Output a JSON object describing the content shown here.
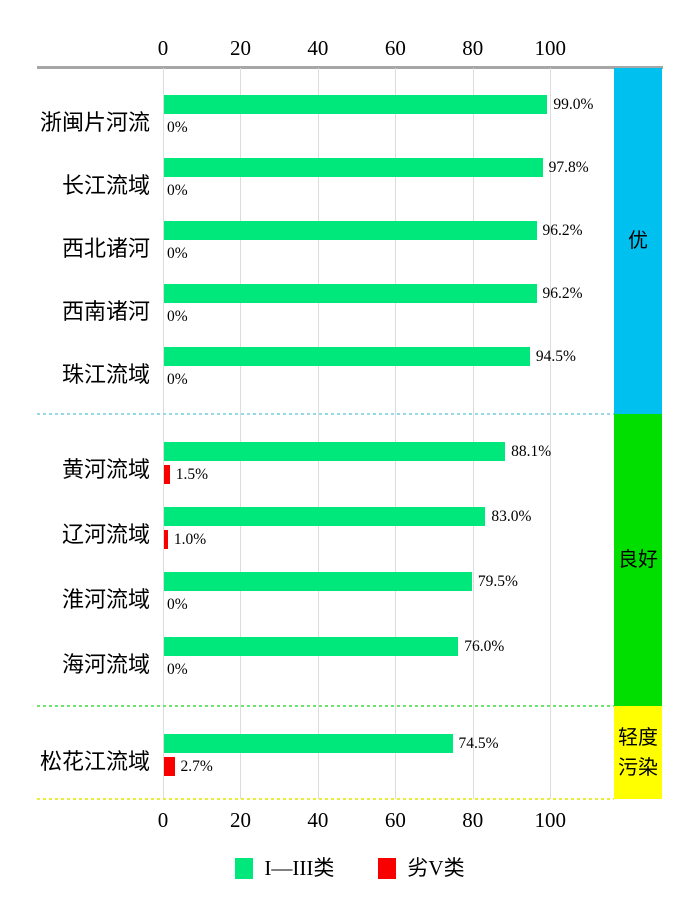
{
  "chart_data": {
    "type": "bar",
    "orientation": "horizontal",
    "title": "",
    "xlabel": "",
    "ylabel": "",
    "axis": {
      "ticks": [
        0,
        20,
        40,
        60,
        80,
        100
      ],
      "range": [
        0,
        100
      ],
      "shown_top_and_bottom": true
    },
    "grid": "vertical-on",
    "categories": [
      "浙闽片河流",
      "长江流域",
      "西北诸河",
      "西南诸河",
      "珠江流域",
      "黄河流域",
      "辽河流域",
      "淮河流域",
      "海河流域",
      "松花江流域"
    ],
    "series": [
      {
        "name": "I—III类",
        "color": "#00e87c",
        "values": [
          99.0,
          97.8,
          96.2,
          96.2,
          94.5,
          88.1,
          83.0,
          79.5,
          76.0,
          74.5
        ],
        "labels": [
          "99.0%",
          "97.8%",
          "96.2%",
          "96.2%",
          "94.5%",
          "88.1%",
          "83.0%",
          "79.5%",
          "76.0%",
          "74.5%"
        ]
      },
      {
        "name": "劣V类",
        "color": "#f80000",
        "values": [
          0,
          0,
          0,
          0,
          0,
          1.5,
          1.0,
          0,
          0,
          2.7
        ],
        "labels": [
          "0%",
          "0%",
          "0%",
          "0%",
          "0%",
          "1.5%",
          "1.0%",
          "0%",
          "0%",
          "2.7%"
        ]
      }
    ],
    "sections": [
      {
        "label": "优",
        "label_lines": [
          "优"
        ],
        "category_range": [
          "浙闽片河流",
          "珠江流域"
        ],
        "band_color": "#00c0f0",
        "separator_color": "#96d9e8"
      },
      {
        "label": "良好",
        "label_lines": [
          "良好"
        ],
        "category_range": [
          "黄河流域",
          "海河流域"
        ],
        "band_color": "#00df00",
        "separator_color": "#6fe46f"
      },
      {
        "label": "轻度污染",
        "label_lines": [
          "轻度",
          "污染"
        ],
        "category_range": [
          "松花江流域",
          "松花江流域"
        ],
        "band_color": "#ffff00",
        "separator_color": "#ecec3c"
      }
    ],
    "legend": [
      {
        "label": "I—III类",
        "color": "#00e87c"
      },
      {
        "label": "劣V类",
        "color": "#f80000"
      }
    ],
    "legend_position": "bottom-center"
  },
  "colors": {
    "axis_line": "#a6a6a6",
    "gridline": "#dcdcdc",
    "background": "#ffffff",
    "text": "#000000"
  }
}
